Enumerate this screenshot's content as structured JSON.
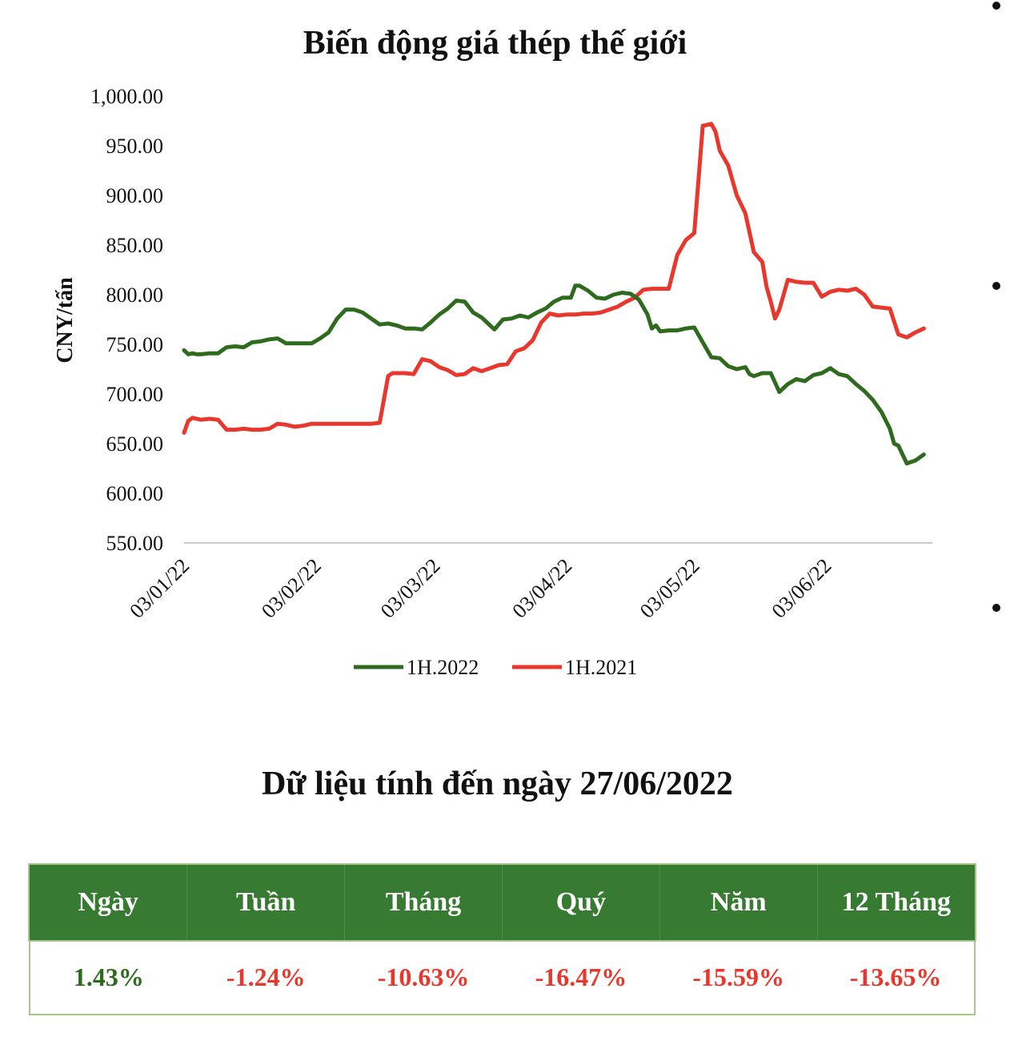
{
  "chart_data": {
    "type": "line",
    "title": "Biến động giá thép thế giới",
    "xlabel": "",
    "ylabel": "CNY/tấn",
    "ylim": [
      550,
      1000
    ],
    "y_ticks": [
      "550.00",
      "600.00",
      "650.00",
      "700.00",
      "750.00",
      "800.00",
      "850.00",
      "900.00",
      "950.00",
      "1,000.00"
    ],
    "x_ticks": [
      "03/01/22",
      "03/02/22",
      "03/03/22",
      "03/04/22",
      "03/05/22",
      "03/06/22"
    ],
    "x_tick_days": [
      0,
      31,
      59,
      90,
      120,
      151
    ],
    "grid": false,
    "legend": "bottom",
    "series": [
      {
        "name": "1H.2022",
        "color": "#2e6b1e",
        "x": [
          0,
          1,
          2,
          3,
          4,
          6,
          8,
          10,
          12,
          14,
          16,
          18,
          20,
          22,
          24,
          26,
          28,
          29,
          30,
          32,
          34,
          36,
          38,
          40,
          42,
          44,
          46,
          48,
          50,
          52,
          54,
          56,
          58,
          60,
          62,
          64,
          66,
          68,
          70,
          71,
          73,
          75,
          77,
          79,
          81,
          83,
          85,
          87,
          89,
          91,
          92,
          93,
          95,
          97,
          99,
          101,
          103,
          105,
          107,
          109,
          110,
          111,
          112,
          114,
          116,
          118,
          120,
          122,
          124,
          126,
          128,
          130,
          132,
          133,
          134,
          136,
          138,
          140,
          142,
          144,
          146,
          148,
          150,
          152,
          154,
          156,
          158,
          160,
          162,
          164,
          166,
          167,
          168,
          170,
          172,
          174
        ],
        "values": [
          744,
          740,
          741,
          740,
          740,
          741,
          741,
          747,
          748,
          747,
          752,
          753,
          755,
          756,
          751,
          751,
          751,
          751,
          751,
          756,
          762,
          776,
          785,
          785,
          782,
          776,
          770,
          771,
          769,
          766,
          766,
          765,
          772,
          780,
          786,
          794,
          793,
          782,
          777,
          773,
          765,
          775,
          776,
          779,
          777,
          782,
          786,
          793,
          797,
          797,
          809,
          809,
          804,
          797,
          796,
          800,
          802,
          801,
          795,
          780,
          766,
          769,
          763,
          764,
          764,
          766,
          767,
          752,
          737,
          736,
          728,
          725,
          727,
          720,
          718,
          721,
          721,
          702,
          710,
          715,
          713,
          719,
          721,
          726,
          720,
          718,
          710,
          703,
          694,
          682,
          665,
          650,
          648,
          630,
          633,
          639
        ]
      },
      {
        "name": "1H.2021",
        "color": "#e8372c",
        "x": [
          0,
          1,
          2,
          4,
          6,
          8,
          10,
          12,
          14,
          16,
          18,
          20,
          22,
          24,
          26,
          28,
          30,
          32,
          34,
          36,
          38,
          40,
          42,
          44,
          46,
          48,
          49,
          50,
          52,
          54,
          56,
          58,
          60,
          62,
          64,
          66,
          68,
          70,
          72,
          74,
          76,
          78,
          80,
          82,
          84,
          86,
          88,
          90,
          92,
          94,
          96,
          98,
          100,
          102,
          104,
          106,
          108,
          110,
          112,
          114,
          116,
          118,
          120,
          122,
          124,
          125,
          126,
          128,
          130,
          132,
          134,
          136,
          137,
          138,
          139,
          140,
          142,
          144,
          146,
          148,
          150,
          152,
          154,
          156,
          158,
          160,
          162,
          164,
          166,
          168,
          170,
          172,
          174
        ],
        "values": [
          661,
          673,
          676,
          674,
          675,
          674,
          664,
          664,
          665,
          664,
          664,
          665,
          670,
          669,
          667,
          668,
          670,
          670,
          670,
          670,
          670,
          670,
          670,
          670,
          671,
          718,
          721,
          721,
          721,
          720,
          735,
          733,
          727,
          724,
          719,
          720,
          726,
          723,
          726,
          729,
          730,
          743,
          746,
          754,
          772,
          781,
          779,
          780,
          780,
          781,
          781,
          782,
          785,
          788,
          793,
          797,
          805,
          806,
          806,
          806,
          840,
          855,
          862,
          970,
          972,
          964,
          945,
          930,
          900,
          882,
          843,
          833,
          808,
          793,
          776,
          785,
          815,
          813,
          812,
          812,
          798,
          803,
          805,
          804,
          806,
          800,
          788,
          787,
          786,
          760,
          757,
          762,
          766
        ]
      }
    ]
  },
  "summary": {
    "heading": "Dữ liệu tính đến ngày 27/06/2022",
    "columns": [
      "Ngày",
      "Tuần",
      "Tháng",
      "Quý",
      "Năm",
      "12 Tháng"
    ],
    "values": [
      "1.43%",
      "-1.24%",
      "-10.63%",
      "-16.47%",
      "-15.59%",
      "-13.65%"
    ],
    "colors": [
      "#2e6b1e",
      "#e8372c",
      "#e8372c",
      "#e8372c",
      "#e8372c",
      "#e8372c"
    ]
  }
}
